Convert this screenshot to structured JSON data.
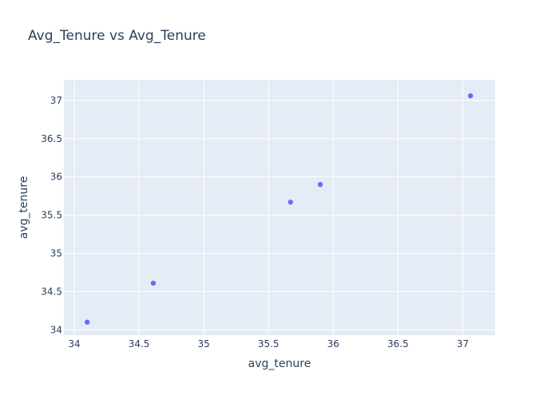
{
  "chart_data": {
    "type": "scatter",
    "title": "Avg_Tenure vs Avg_Tenure",
    "xlabel": "avg_tenure",
    "ylabel": "avg_tenure",
    "xlim": [
      33.92,
      37.25
    ],
    "ylim": [
      33.93,
      37.27
    ],
    "xticks": [
      34,
      34.5,
      35,
      35.5,
      36,
      36.5,
      37
    ],
    "yticks": [
      34,
      34.5,
      35,
      35.5,
      36,
      36.5,
      37
    ],
    "grid": true,
    "colors": {
      "plot_background": "#E5ECF6",
      "grid": "#ffffff",
      "marker": "#636EFA",
      "text": "#2a3f5f"
    },
    "series": [
      {
        "x": [
          34.1,
          34.61,
          35.67,
          35.9,
          37.06
        ],
        "y": [
          34.1,
          34.61,
          35.67,
          35.9,
          37.06
        ]
      }
    ]
  }
}
